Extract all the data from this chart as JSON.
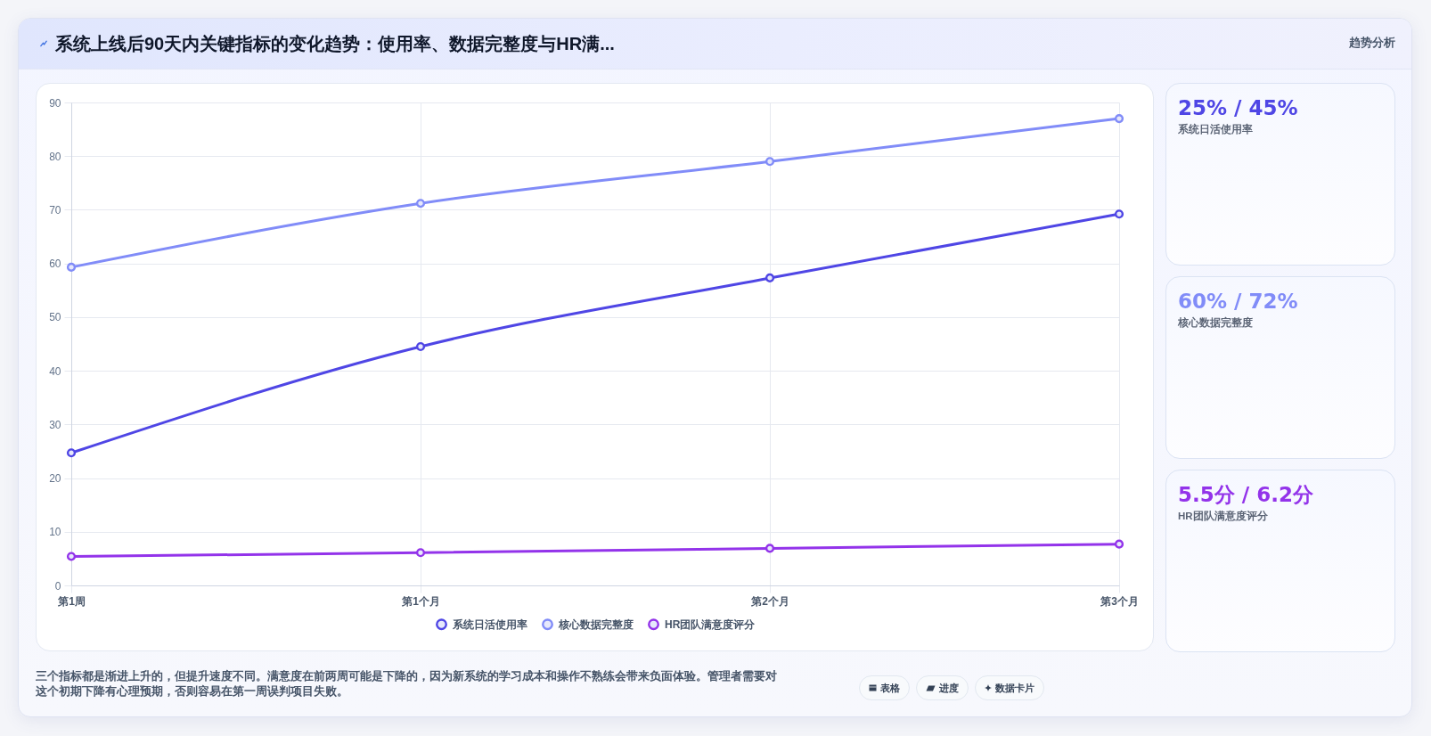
{
  "chart_data": [
    {
      "type": "line",
      "title": "系统上线后90天内关键指标的变化趋势：使用率、数据完整度与HR满...",
      "categories": [
        "第1周",
        "第1个月",
        "第2个月",
        "第3个月"
      ],
      "series": [
        {
          "name": "系统日活使用率",
          "color": "#4f46e5",
          "values": [
            24.7,
            44.5,
            57.3,
            69.2
          ]
        },
        {
          "name": "核心数据完整度",
          "color": "#818cf8",
          "values": [
            59.3,
            71.2,
            79.0,
            87.0
          ]
        },
        {
          "name": "HR团队满意度评分",
          "color": "#9333ea",
          "values": [
            5.4,
            6.1,
            6.9,
            7.7
          ]
        }
      ],
      "ylim": [
        0,
        90
      ],
      "yticks": [
        0,
        10,
        20,
        30,
        40,
        50,
        60,
        70,
        80,
        90
      ],
      "grid": true,
      "legend": "bottom",
      "marker": "circle",
      "line_style": "solid",
      "annotations": [
        "三个指标都是渐进上升的，但提升速度不同。满意度在前两周可能是下降的，因为新系统的学习成本和操作不熟练会带来负面体验。管理者需要对这个初期下降有心理预期，否则容易在第一周误判项目失败。",
        "表格",
        "进度",
        "数据卡片"
      ]
    },
    {
      "type": "other",
      "title": "25% / 45%",
      "subtitle": "系统日活使用率",
      "color": "#4f46e5",
      "annotations": [
        "趋势分析"
      ]
    },
    {
      "type": "other",
      "title": "60% / 72%",
      "subtitle": "核心数据完整度",
      "color": "#818cf8"
    },
    {
      "type": "other",
      "title": "5.5分 / 6.2分",
      "subtitle": "HR团队满意度评分",
      "color": "#9333ea"
    }
  ]
}
